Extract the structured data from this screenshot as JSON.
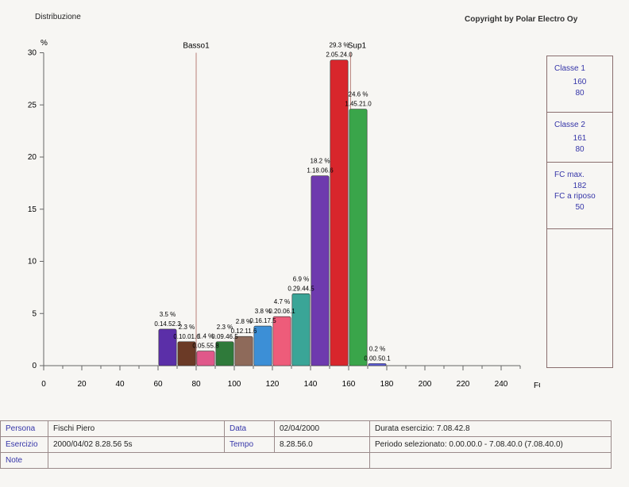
{
  "header": {
    "title": "Distribuzione",
    "copyright": "Copyright by Polar Electro Oy"
  },
  "chart_data": {
    "type": "bar",
    "y_unit_label": "%",
    "xlabel": "FC / bpm",
    "xlim": [
      0,
      250
    ],
    "ylim": [
      0,
      30
    ],
    "x_ticks": [
      0,
      20,
      40,
      60,
      80,
      100,
      120,
      140,
      160,
      180,
      200,
      220,
      240
    ],
    "y_ticks": [
      0,
      5,
      10,
      15,
      20,
      25,
      30
    ],
    "grid": false,
    "markers": [
      {
        "label": "Basso1",
        "x": 80
      },
      {
        "label": "Sup1",
        "x": 161
      }
    ],
    "bars": [
      {
        "x": 65,
        "value": 3.5,
        "pct_label": "3.5 %",
        "time_label": "0.14.52.3",
        "color": "#5b2fa8"
      },
      {
        "x": 75,
        "value": 2.3,
        "pct_label": "2.3 %",
        "time_label": "0.10.01.6",
        "color": "#6b3a26"
      },
      {
        "x": 85,
        "value": 1.4,
        "pct_label": "1.4 %",
        "time_label": "0.05.55.8",
        "color": "#e0588a"
      },
      {
        "x": 95,
        "value": 2.3,
        "pct_label": "2.3 %",
        "time_label": "0.09.46.5",
        "color": "#2f7a3a"
      },
      {
        "x": 105,
        "value": 2.8,
        "pct_label": "2.8 %",
        "time_label": "0.12.11.6",
        "color": "#8e6a5a"
      },
      {
        "x": 115,
        "value": 3.8,
        "pct_label": "3.8 %",
        "time_label": "0.16.17.5",
        "color": "#3c8fd6"
      },
      {
        "x": 125,
        "value": 4.7,
        "pct_label": "4.7 %",
        "time_label": "0.20.06.1",
        "color": "#ee5c7a"
      },
      {
        "x": 135,
        "value": 6.9,
        "pct_label": "6.9 %",
        "time_label": "0.29.44.5",
        "color": "#3aa597"
      },
      {
        "x": 145,
        "value": 18.2,
        "pct_label": "18.2 %",
        "time_label": "1.18.06.6",
        "color": "#6e3aae"
      },
      {
        "x": 155,
        "value": 29.3,
        "pct_label": "29.3 %",
        "time_label": "2.05.24.0",
        "color": "#d8262c"
      },
      {
        "x": 165,
        "value": 24.6,
        "pct_label": "24.6 %",
        "time_label": "1.45.21.0",
        "color": "#3aa54a"
      },
      {
        "x": 175,
        "value": 0.2,
        "pct_label": "0.2 %",
        "time_label": "0.00.50.1",
        "color": "#5b5bd6"
      }
    ]
  },
  "side_panel": {
    "classe1_label": "Classe 1",
    "classe1_upper": "160",
    "classe1_lower": "80",
    "classe2_label": "Classe 2",
    "classe2_upper": "161",
    "classe2_lower": "80",
    "fc_max_label": "FC max.",
    "fc_max_value": "182",
    "fc_rest_label": "FC a riposo",
    "fc_rest_value": "50"
  },
  "info": {
    "persona_label": "Persona",
    "persona_value": "Fischi Piero",
    "data_label": "Data",
    "data_value": "02/04/2000",
    "durata": "Durata esercizio: 7.08.42.8",
    "esercizio_label": "Esercizio",
    "esercizio_value": "2000/04/02 8.28.56 5s",
    "tempo_label": "Tempo",
    "tempo_value": "8.28.56.0",
    "periodo": "Periodo selezionato: 0.00.00.0 - 7.08.40.0 (7.08.40.0)",
    "note_label": "Note"
  }
}
